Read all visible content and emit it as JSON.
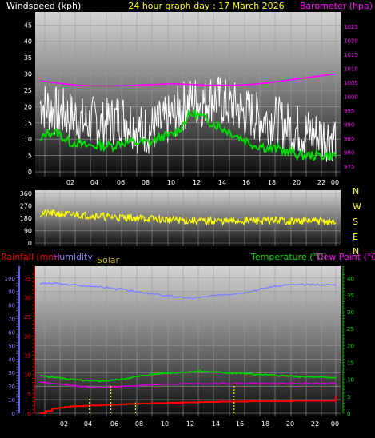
{
  "header": {
    "windspeed_label": "Windspeed (kph)",
    "title": "24 hour graph day : 17 March 2026",
    "barometer_label": "Barometer (hpa)"
  },
  "direction_labels": [
    "N",
    "W",
    "S",
    "E",
    "N"
  ],
  "bottom_header": {
    "rainfall_label": "Rainfall (mm)",
    "humidity_label": "Humidity",
    "solar_label": "Solar",
    "temperature_label": "Temperature (°C)",
    "dewpoint_label": "Dew Point (°C)"
  },
  "colors": {
    "wind": "#ffffff",
    "wind_avg": "#00dd00",
    "barometer": "#ff00ff",
    "direction": "#ffff00",
    "rainfall": "#ff0000",
    "humidity": "#8080ff",
    "solar": "#e8e800",
    "temperature": "#00cc00",
    "dewpoint": "#cc00cc",
    "title": "#ffff00"
  },
  "chart_data": [
    {
      "type": "line",
      "x_ticks": [
        "02",
        "04",
        "06",
        "08",
        "10",
        "12",
        "14",
        "16",
        "18",
        "20",
        "22",
        "00"
      ],
      "y_left_ticks": [
        "0",
        "5",
        "10",
        "15",
        "20",
        "25",
        "30",
        "35",
        "40",
        "45"
      ],
      "y_left_range": [
        0,
        48
      ],
      "y_right_ticks": [
        "975",
        "980",
        "985",
        "990",
        "995",
        "1000",
        "1005",
        "1010",
        "1015",
        "1020",
        "1025"
      ],
      "y_right_range": [
        973,
        1029
      ],
      "series": [
        {
          "name": "Windspeed",
          "axis": "left",
          "values": [
            21,
            20,
            19,
            18,
            18,
            17,
            17,
            15,
            15,
            16,
            14,
            15,
            16,
            17,
            16,
            15,
            13,
            13,
            13,
            14,
            15,
            16,
            18,
            20,
            21,
            22,
            21,
            22,
            23,
            22,
            21,
            20,
            20,
            18,
            18,
            17,
            16,
            16,
            16,
            15,
            14,
            13,
            13,
            12,
            12,
            11,
            11,
            11,
            11
          ]
        },
        {
          "name": "Wind avg",
          "axis": "left",
          "values": [
            9,
            12,
            12,
            12,
            10,
            9,
            9,
            8,
            8,
            8,
            8,
            8,
            8,
            9,
            9,
            9,
            9,
            9,
            9,
            10,
            11,
            11,
            12,
            14,
            17,
            18,
            17,
            16,
            15,
            14,
            13,
            12,
            11,
            10,
            9,
            8,
            8,
            7,
            7,
            7,
            6,
            6,
            5,
            5,
            5,
            5,
            5,
            5,
            5
          ]
        },
        {
          "name": "Barometer",
          "axis": "right",
          "values": [
            1005.5,
            1005.3,
            1005,
            1004.7,
            1004.5,
            1004.2,
            1004,
            1003.9,
            1003.8,
            1003.7,
            1003.7,
            1003.7,
            1003.7,
            1003.8,
            1003.8,
            1003.9,
            1004,
            1004.1,
            1004.2,
            1004.3,
            1004.4,
            1004.5,
            1004.5,
            1004.4,
            1004.3,
            1004.2,
            1004.1,
            1004,
            1004,
            1004,
            1004,
            1004,
            1004,
            1004.1,
            1004.2,
            1004.4,
            1004.6,
            1004.8,
            1005.1,
            1005.4,
            1005.7,
            1006,
            1006.3,
            1006.6,
            1006.9,
            1007.2,
            1007.5,
            1007.8,
            1008
          ]
        }
      ]
    },
    {
      "type": "scatter",
      "x_ticks": [
        "02",
        "04",
        "06",
        "08",
        "10",
        "12",
        "14",
        "16",
        "18",
        "20",
        "22",
        "00"
      ],
      "y_ticks": [
        "0",
        "90",
        "180",
        "270",
        "360"
      ],
      "y_range": [
        0,
        360
      ],
      "series": [
        {
          "name": "Wind direction",
          "values": [
            210,
            215,
            215,
            212,
            208,
            205,
            210,
            200,
            200,
            198,
            195,
            190,
            190,
            185,
            185,
            183,
            180,
            178,
            175,
            175,
            170,
            168,
            168,
            165,
            162,
            160,
            160,
            158,
            160,
            160,
            158,
            158,
            160,
            160,
            162,
            162,
            160,
            160,
            165,
            165,
            160,
            158,
            160,
            160,
            160,
            158,
            155,
            152,
            150
          ]
        }
      ]
    },
    {
      "type": "line",
      "x_ticks": [
        "02",
        "04",
        "06",
        "08",
        "10",
        "12",
        "14",
        "16",
        "18",
        "20",
        "22",
        "00"
      ],
      "y_left1_ticks": [
        "0",
        "5",
        "10",
        "15",
        "20",
        "25",
        "30",
        "35"
      ],
      "y_left1_range": [
        0,
        36.4
      ],
      "y_left2_ticks": [
        "0",
        "10",
        "20",
        "30",
        "40",
        "50",
        "60",
        "70",
        "80",
        "90",
        "100"
      ],
      "y_left2_range": [
        0,
        104
      ],
      "y_right_ticks": [
        "0",
        "5",
        "10",
        "15",
        "20",
        "25",
        "30",
        "35",
        "40"
      ],
      "y_right_range": [
        0,
        41.6
      ],
      "series": [
        {
          "name": "Humidity",
          "axis": "left2",
          "values": [
            96,
            96,
            96,
            96,
            95,
            95,
            95,
            94,
            94,
            94,
            93,
            93,
            92,
            92,
            91,
            90,
            90,
            89,
            88,
            88,
            87,
            87,
            86,
            86,
            85,
            85,
            86,
            86,
            87,
            87,
            88,
            88,
            89,
            89,
            90,
            91,
            92,
            93,
            94,
            94,
            95,
            95,
            95,
            95,
            95,
            95,
            95,
            95,
            95
          ]
        },
        {
          "name": "Temperature",
          "axis": "right",
          "values": [
            11,
            10.9,
            10.7,
            10.5,
            10.2,
            10,
            9.8,
            9.6,
            9.5,
            9.5,
            9.5,
            9.6,
            9.8,
            10,
            10.3,
            10.6,
            10.9,
            11.2,
            11.4,
            11.6,
            11.8,
            11.9,
            12,
            12.1,
            12.2,
            12.3,
            12.4,
            12.3,
            12.2,
            12.1,
            12,
            11.9,
            11.8,
            11.7,
            11.6,
            11.5,
            11.4,
            11.3,
            11.2,
            11.1,
            11,
            10.9,
            10.8,
            10.7,
            10.7,
            10.6,
            10.6,
            10.5,
            10.5
          ]
        },
        {
          "name": "Dew Point",
          "axis": "right",
          "values": [
            9.2,
            9,
            8.8,
            8.6,
            8.4,
            8.2,
            8,
            7.8,
            7.7,
            7.6,
            7.6,
            7.7,
            7.8,
            7.9,
            8,
            8.1,
            8.2,
            8.3,
            8.4,
            8.5,
            8.6,
            8.6,
            8.6,
            8.7,
            8.7,
            8.7,
            8.7,
            8.7,
            8.7,
            8.8,
            8.8,
            8.8,
            8.8,
            8.8,
            8.8,
            8.8,
            8.8,
            8.8,
            8.8,
            8.8,
            8.8,
            8.8,
            8.8,
            8.8,
            8.8,
            8.8,
            8.8,
            8.8,
            8.8
          ]
        },
        {
          "name": "Rainfall",
          "axis": "left1",
          "step": true,
          "values": [
            0,
            0.6,
            1.2,
            1.4,
            1.6,
            1.8,
            1.8,
            1.9,
            2,
            2,
            2.1,
            2.2,
            2.2,
            2.3,
            2.4,
            2.4,
            2.5,
            2.5,
            2.6,
            2.6,
            2.6,
            2.7,
            2.7,
            2.8,
            2.8,
            2.8,
            2.9,
            2.9,
            2.9,
            3,
            3,
            3,
            3,
            3,
            3.1,
            3.1,
            3.1,
            3.1,
            3.1,
            3.1,
            3.1,
            3.2,
            3.2,
            3.2,
            3.2,
            3.2,
            3.2,
            3.2,
            4.4
          ]
        },
        {
          "name": "Solar",
          "axis": "left1",
          "type": "bars",
          "points": [
            [
              8.0,
              3.8
            ],
            [
              11.5,
              7.0
            ],
            [
              15.5,
              2.8
            ],
            [
              31.5,
              7.0
            ]
          ]
        }
      ]
    }
  ]
}
